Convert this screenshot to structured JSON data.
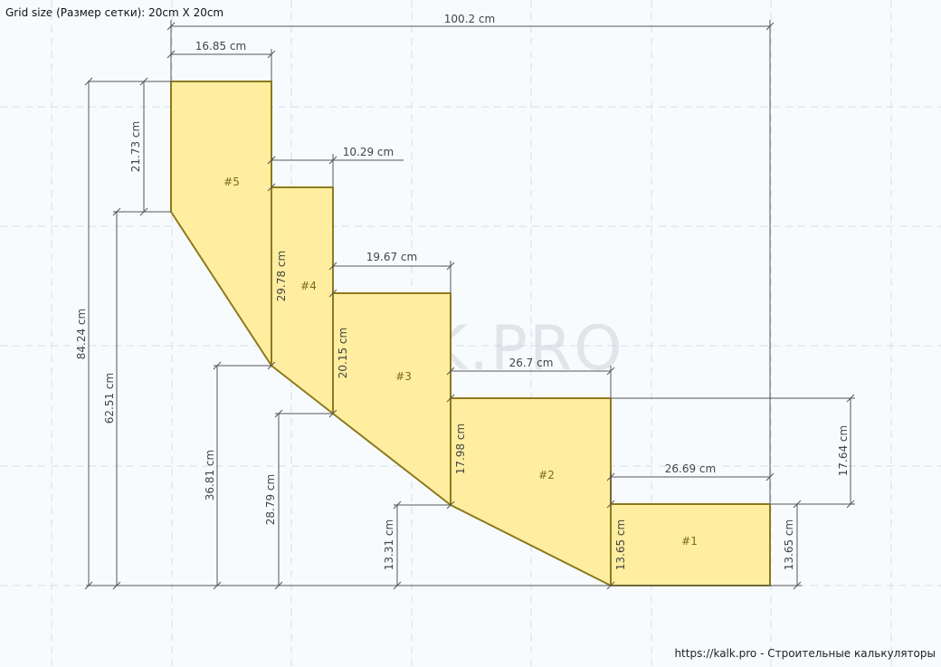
{
  "grid_caption": "Grid size (Размер сетки): 20cm X 20cm",
  "footer": "https://kalk.pro - Строительные калькуляторы",
  "watermark": "KALK.PRO",
  "colors": {
    "fill": "#ffeea0",
    "stroke": "#8c7a1e",
    "dim_line": "#555555",
    "grid": "#d6dde6"
  },
  "pieces": [
    "#1",
    "#2",
    "#3",
    "#4",
    "#5"
  ],
  "dimensions": {
    "total_width": "100.2 cm",
    "top_step_width": "16.85 cm",
    "step4_offset": "10.29 cm",
    "step3_width": "19.67 cm",
    "step2_width": "26.7 cm",
    "step1_width": "26.69 cm",
    "total_height": "84.24 cm",
    "piece5_height": "21.73 cm",
    "h_62": "62.51 cm",
    "h_36": "36.81 cm",
    "h_28": "28.79 cm",
    "h_13_31": "13.31 cm",
    "piece4_height": "29.78 cm",
    "piece3_height": "20.15 cm",
    "piece2_height": "17.98 cm",
    "piece1_left_height": "13.65 cm",
    "piece1_right_height": "13.65 cm",
    "step_rise": "17.64 cm"
  }
}
